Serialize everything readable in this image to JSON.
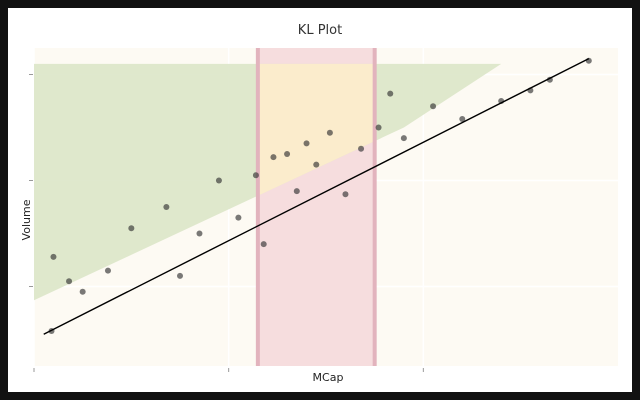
{
  "chart_data": {
    "type": "scatter",
    "title": "KL Plot",
    "xlabel": "MCap",
    "ylabel": "Volume",
    "xlim": [
      0,
      30
    ],
    "ylim": [
      0,
      30
    ],
    "xticks": [
      0,
      10,
      20
    ],
    "yticks": [
      7.5,
      17.5,
      27.5
    ],
    "tick_labels_shown": false,
    "grid": true,
    "colors": {
      "plot_background": "#fdfaf3",
      "green_region": "#dbe6c8",
      "pink_region": "#f5dbdc",
      "yellow_region": "#fbeccc",
      "band_edge": "#e2b3bd",
      "points": "#333333",
      "trend_line": "#000000"
    },
    "trend_line": {
      "x": [
        0.5,
        28.5
      ],
      "y": [
        3.0,
        29.0
      ]
    },
    "highlight_band": {
      "x": [
        11.5,
        17.5
      ]
    },
    "upper_region": {
      "x": [
        0,
        24
      ],
      "y_top": 28.5,
      "lower_edge": {
        "x": [
          0,
          19
        ],
        "y": [
          6.2,
          22.5
        ]
      }
    },
    "summary_points": [
      {
        "x": 0.9,
        "y": 3.3
      },
      {
        "x": 1.0,
        "y": 10.3
      },
      {
        "x": 1.8,
        "y": 8.0
      },
      {
        "x": 2.5,
        "y": 7.0
      },
      {
        "x": 3.8,
        "y": 9.0
      },
      {
        "x": 5.0,
        "y": 13.0
      },
      {
        "x": 6.8,
        "y": 15.0
      },
      {
        "x": 7.5,
        "y": 8.5
      },
      {
        "x": 8.5,
        "y": 12.5
      },
      {
        "x": 9.5,
        "y": 17.5
      },
      {
        "x": 10.5,
        "y": 14.0
      },
      {
        "x": 11.4,
        "y": 18.0
      },
      {
        "x": 11.8,
        "y": 11.5
      },
      {
        "x": 12.3,
        "y": 19.7
      },
      {
        "x": 13.0,
        "y": 20.0
      },
      {
        "x": 13.5,
        "y": 16.5
      },
      {
        "x": 14.0,
        "y": 21.0
      },
      {
        "x": 14.5,
        "y": 19.0
      },
      {
        "x": 15.2,
        "y": 22.0
      },
      {
        "x": 16.0,
        "y": 16.2
      },
      {
        "x": 16.8,
        "y": 20.5
      },
      {
        "x": 17.7,
        "y": 22.5
      },
      {
        "x": 18.3,
        "y": 25.7
      },
      {
        "x": 19.0,
        "y": 21.5
      },
      {
        "x": 20.5,
        "y": 24.5
      },
      {
        "x": 22.0,
        "y": 23.3
      },
      {
        "x": 24.0,
        "y": 25.0
      },
      {
        "x": 25.5,
        "y": 26.0
      },
      {
        "x": 26.5,
        "y": 27.0
      },
      {
        "x": 28.5,
        "y": 28.8
      }
    ]
  }
}
